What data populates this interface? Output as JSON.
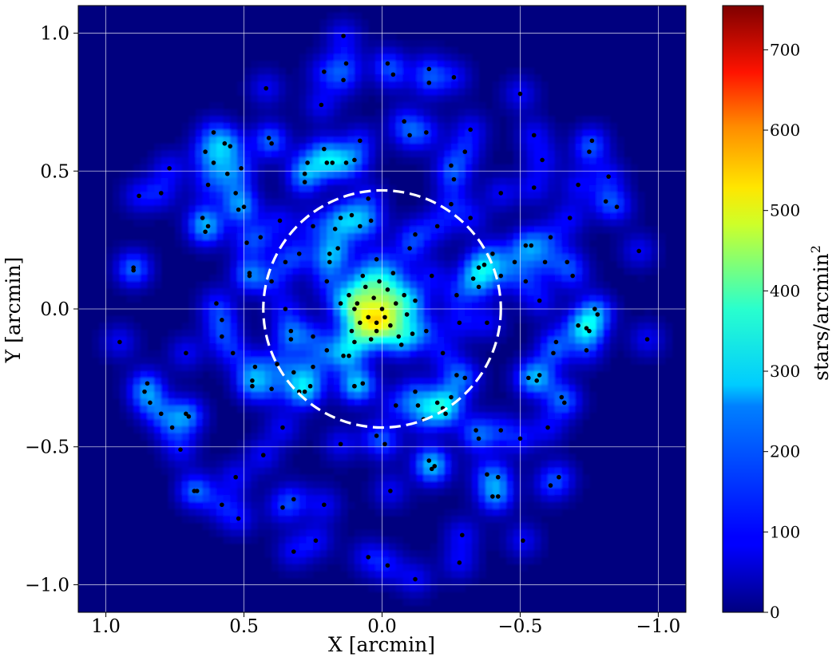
{
  "chart_data": {
    "type": "heatmap",
    "title": "",
    "xlabel": "X [arcmin]",
    "ylabel": "Y [arcmin]",
    "xlim": [
      1.1,
      -1.1
    ],
    "ylim": [
      -1.1,
      1.1
    ],
    "x_inverted": true,
    "grid": true,
    "xticks": [
      {
        "value": 1.0,
        "label": "1.0"
      },
      {
        "value": 0.5,
        "label": "0.5"
      },
      {
        "value": 0.0,
        "label": "0.0"
      },
      {
        "value": -0.5,
        "label": "−0.5"
      },
      {
        "value": -1.0,
        "label": "−1.0"
      }
    ],
    "yticks": [
      {
        "value": 1.0,
        "label": "1.0"
      },
      {
        "value": 0.5,
        "label": "0.5"
      },
      {
        "value": 0.0,
        "label": "0.0"
      },
      {
        "value": -0.5,
        "label": "−0.5"
      },
      {
        "value": -1.0,
        "label": "−1.0"
      }
    ],
    "colorbar": {
      "label": "stars/arcmin",
      "label_superscript": "2",
      "colormap": "jet",
      "range": [
        0,
        755
      ],
      "ticks": [
        {
          "value": 0,
          "label": "0"
        },
        {
          "value": 100,
          "label": "100"
        },
        {
          "value": 200,
          "label": "200"
        },
        {
          "value": 300,
          "label": "300"
        },
        {
          "value": 400,
          "label": "400"
        },
        {
          "value": 500,
          "label": "500"
        },
        {
          "value": 600,
          "label": "600"
        },
        {
          "value": 700,
          "label": "700"
        }
      ]
    },
    "circle": {
      "center": [
        0.0,
        0.0
      ],
      "radius": 0.43,
      "style": "dashed",
      "color": "#ffffff"
    },
    "star_color": "#000000",
    "stars": [
      [
        0.0,
        0.0
      ],
      [
        -0.02,
        0.07
      ],
      [
        0.03,
        0.04
      ],
      [
        -0.05,
        0.02
      ],
      [
        0.05,
        -0.03
      ],
      [
        -0.03,
        -0.06
      ],
      [
        0.02,
        -0.08
      ],
      [
        0.08,
        -0.05
      ],
      [
        -0.06,
        -0.1
      ],
      [
        0.04,
        -0.11
      ],
      [
        0.09,
        0.02
      ],
      [
        -0.08,
        0.05
      ],
      [
        0.01,
        0.1
      ],
      [
        -0.09,
        -0.02
      ],
      [
        0.07,
        0.12
      ],
      [
        -0.04,
        0.13
      ],
      [
        0.11,
        -0.08
      ],
      [
        -0.11,
        -0.09
      ],
      [
        0.12,
        0.05
      ],
      [
        -0.12,
        0.03
      ],
      [
        0.06,
        0.08
      ],
      [
        -0.01,
        -0.03
      ],
      [
        0.1,
        -0.12
      ],
      [
        -0.07,
        -0.13
      ],
      [
        -0.16,
        -0.08
      ],
      [
        -0.18,
        0.12
      ],
      [
        0.19,
        0.17
      ],
      [
        -0.22,
        -0.16
      ],
      [
        0.2,
        0.1
      ],
      [
        -0.1,
        0.22
      ],
      [
        0.14,
        -0.17
      ],
      [
        0.25,
        -0.1
      ],
      [
        -0.27,
        0.05
      ],
      [
        0.3,
        0.2
      ],
      [
        -0.3,
        -0.25
      ],
      [
        0.28,
        -0.3
      ],
      [
        -0.35,
        0.15
      ],
      [
        0.35,
        0.0
      ],
      [
        -0.38,
        -0.05
      ],
      [
        0.15,
        0.33
      ],
      [
        -0.2,
        0.3
      ],
      [
        0.1,
        -0.28
      ],
      [
        -0.12,
        -0.3
      ],
      [
        0.38,
        -0.2
      ],
      [
        -0.25,
        0.38
      ],
      [
        0.25,
        0.3
      ],
      [
        -0.05,
        -0.35
      ],
      [
        0.05,
        0.4
      ],
      [
        -0.4,
        0.2
      ],
      [
        0.4,
        0.1
      ],
      [
        -0.15,
        -0.4
      ],
      [
        0.2,
        -0.15
      ],
      [
        0.95,
        -0.12
      ],
      [
        0.9,
        0.15
      ],
      [
        0.9,
        0.14
      ],
      [
        0.88,
        0.41
      ],
      [
        0.86,
        -0.3
      ],
      [
        0.85,
        -0.27
      ],
      [
        0.84,
        -0.34
      ],
      [
        0.8,
        -0.38
      ],
      [
        0.76,
        -0.43
      ],
      [
        0.8,
        0.42
      ],
      [
        0.73,
        -0.51
      ],
      [
        0.77,
        0.51
      ],
      [
        0.71,
        -0.38
      ],
      [
        0.71,
        -0.16
      ],
      [
        0.7,
        -0.39
      ],
      [
        0.68,
        -0.66
      ],
      [
        0.67,
        -0.66
      ],
      [
        0.65,
        0.33
      ],
      [
        0.64,
        0.28
      ],
      [
        0.63,
        0.3
      ],
      [
        0.64,
        0.57
      ],
      [
        0.63,
        0.45
      ],
      [
        0.61,
        0.64
      ],
      [
        0.61,
        0.53
      ],
      [
        0.6,
        0.02
      ],
      [
        0.58,
        -0.04
      ],
      [
        0.58,
        -0.1
      ],
      [
        0.58,
        -0.71
      ],
      [
        0.57,
        0.6
      ],
      [
        0.56,
        0.49
      ],
      [
        0.54,
        -0.16
      ],
      [
        0.55,
        0.59
      ],
      [
        0.53,
        -0.61
      ],
      [
        0.53,
        0.42
      ],
      [
        0.52,
        0.36
      ],
      [
        0.52,
        -0.76
      ],
      [
        0.51,
        0.51
      ],
      [
        0.5,
        0.37
      ],
      [
        0.49,
        0.24
      ],
      [
        0.48,
        0.13
      ],
      [
        0.48,
        0.12
      ],
      [
        0.47,
        -0.28
      ],
      [
        0.47,
        -0.26
      ],
      [
        0.46,
        -0.21
      ],
      [
        0.44,
        0.26
      ],
      [
        0.43,
        -0.53
      ],
      [
        0.42,
        0.8
      ],
      [
        0.41,
        0.62
      ],
      [
        0.4,
        -0.29
      ],
      [
        0.4,
        0.6
      ],
      [
        0.37,
        0.32
      ],
      [
        0.36,
        -0.43
      ],
      [
        0.36,
        -0.72
      ],
      [
        0.35,
        0.17
      ],
      [
        0.33,
        -0.08
      ],
      [
        0.33,
        -0.11
      ],
      [
        0.32,
        -0.23
      ],
      [
        0.32,
        -0.69
      ],
      [
        0.32,
        -0.88
      ],
      [
        0.3,
        -0.3
      ],
      [
        0.28,
        0.49
      ],
      [
        0.28,
        0.46
      ],
      [
        0.27,
        0.53
      ],
      [
        0.26,
        -0.28
      ],
      [
        0.25,
        -0.21
      ],
      [
        0.24,
        -0.84
      ],
      [
        0.22,
        0.74
      ],
      [
        0.21,
        0.86
      ],
      [
        0.21,
        0.58
      ],
      [
        0.21,
        -0.71
      ],
      [
        0.2,
        0.53
      ],
      [
        0.19,
        0.2
      ],
      [
        0.18,
        0.53
      ],
      [
        0.17,
        0.29
      ],
      [
        0.16,
        0.22
      ],
      [
        0.15,
        0.02
      ],
      [
        0.15,
        -0.49
      ],
      [
        0.14,
        0.99
      ],
      [
        0.14,
        0.83
      ],
      [
        0.13,
        0.89
      ],
      [
        0.13,
        0.53
      ],
      [
        0.12,
        -0.17
      ],
      [
        0.11,
        0.34
      ],
      [
        0.1,
        0.54
      ],
      [
        0.1,
        0.0
      ],
      [
        0.1,
        -0.28
      ],
      [
        0.08,
        0.61
      ],
      [
        0.08,
        0.3
      ],
      [
        0.07,
        -0.27
      ],
      [
        0.05,
        -0.9
      ],
      [
        0.04,
        0.32
      ],
      [
        0.02,
        0.18
      ],
      [
        0.02,
        -0.46
      ],
      [
        0.02,
        -0.05
      ],
      [
        -0.01,
        -0.49
      ],
      [
        -0.02,
        0.89
      ],
      [
        -0.02,
        -0.93
      ],
      [
        -0.03,
        -0.66
      ],
      [
        -0.04,
        0.85
      ],
      [
        -0.08,
        0.68
      ],
      [
        -0.1,
        0.63
      ],
      [
        -0.12,
        0.27
      ],
      [
        -0.12,
        -0.98
      ],
      [
        -0.13,
        -0.35
      ],
      [
        -0.16,
        0.64
      ],
      [
        -0.17,
        0.82
      ],
      [
        -0.17,
        0.87
      ],
      [
        -0.18,
        -0.58
      ],
      [
        -0.19,
        -0.57
      ],
      [
        -0.2,
        -0.34
      ],
      [
        -0.22,
        -0.36
      ],
      [
        -0.25,
        0.52
      ],
      [
        -0.25,
        -0.32
      ],
      [
        -0.26,
        0.47
      ],
      [
        -0.26,
        0.84
      ],
      [
        -0.27,
        -0.24
      ],
      [
        -0.28,
        -0.92
      ],
      [
        -0.29,
        -0.82
      ],
      [
        -0.3,
        0.57
      ],
      [
        -0.32,
        0.65
      ],
      [
        -0.33,
        0.11
      ],
      [
        -0.34,
        -0.44
      ],
      [
        -0.35,
        -0.47
      ],
      [
        -0.37,
        0.16
      ],
      [
        -0.38,
        -0.6
      ],
      [
        -0.4,
        -0.68
      ],
      [
        -0.42,
        -0.61
      ],
      [
        -0.43,
        -0.44
      ],
      [
        -0.42,
        -0.68
      ],
      [
        -0.43,
        0.12
      ],
      [
        -0.5,
        -0.47
      ],
      [
        -0.5,
        0.78
      ],
      [
        -0.51,
        -0.84
      ],
      [
        -0.52,
        0.1
      ],
      [
        -0.53,
        -0.25
      ],
      [
        -0.54,
        0.23
      ],
      [
        -0.55,
        0.63
      ],
      [
        -0.55,
        0.44
      ],
      [
        -0.56,
        -0.26
      ],
      [
        -0.57,
        0.03
      ],
      [
        -0.57,
        -0.24
      ],
      [
        -0.58,
        0.54
      ],
      [
        -0.59,
        0.17
      ],
      [
        -0.6,
        -0.43
      ],
      [
        -0.61,
        -0.64
      ],
      [
        -0.61,
        0.26
      ],
      [
        -0.62,
        -0.16
      ],
      [
        -0.63,
        -0.12
      ],
      [
        -0.64,
        -0.61
      ],
      [
        -0.65,
        -0.32
      ],
      [
        -0.66,
        -0.34
      ],
      [
        -0.67,
        0.17
      ],
      [
        -0.68,
        0.33
      ],
      [
        -0.69,
        0.12
      ],
      [
        -0.71,
        0.45
      ],
      [
        -0.71,
        -0.06
      ],
      [
        -0.74,
        -0.07
      ],
      [
        -0.75,
        -0.08
      ],
      [
        -0.75,
        0.57
      ],
      [
        -0.76,
        0.61
      ],
      [
        -0.77,
        0.0
      ],
      [
        -0.78,
        -0.02
      ],
      [
        -0.81,
        0.39
      ],
      [
        -0.82,
        0.48
      ],
      [
        -0.85,
        0.37
      ],
      [
        -0.93,
        0.21
      ],
      [
        -0.96,
        -0.11
      ],
      [
        -0.74,
        -0.15
      ],
      [
        -0.48,
        0.17
      ],
      [
        -0.52,
        0.23
      ],
      [
        -0.32,
        0.33
      ],
      [
        -0.23,
        -0.38
      ],
      [
        -0.17,
        -0.55
      ],
      [
        -0.43,
        0.42
      ],
      [
        -0.35,
        0.08
      ],
      [
        -0.28,
        -0.05
      ]
    ]
  }
}
